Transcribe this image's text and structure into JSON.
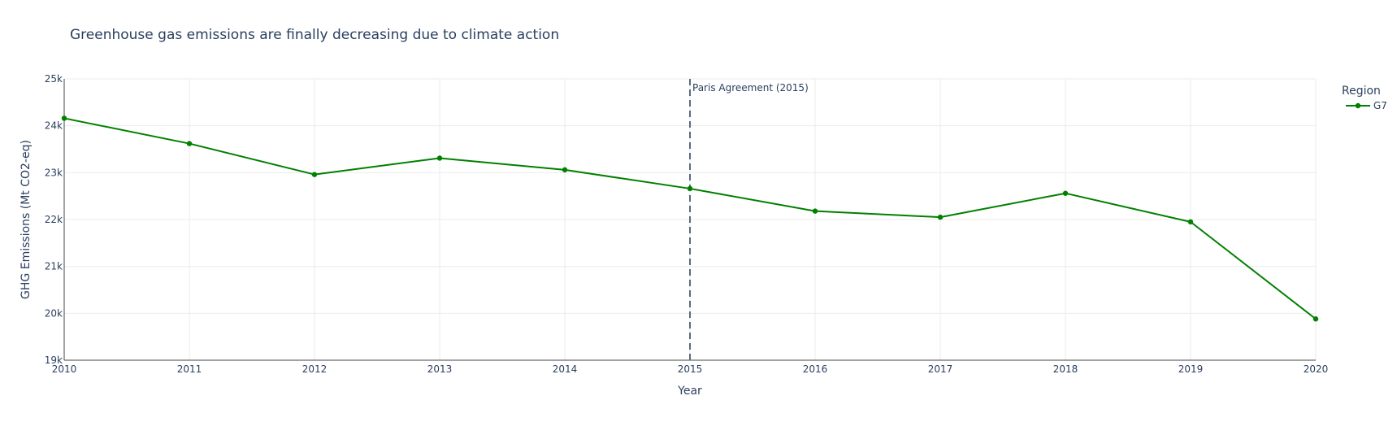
{
  "chart_data": {
    "type": "line",
    "title": "Greenhouse gas emissions are finally decreasing due to climate action",
    "xlabel": "Year",
    "ylabel": "GHG Emissions (Mt CO2-eq)",
    "x": [
      2010,
      2011,
      2012,
      2013,
      2014,
      2015,
      2016,
      2017,
      2018,
      2019,
      2020
    ],
    "xlim": [
      2010,
      2020
    ],
    "ylim": [
      19000,
      25000
    ],
    "x_ticks": [
      "2010",
      "2011",
      "2012",
      "2013",
      "2014",
      "2015",
      "2016",
      "2017",
      "2018",
      "2019",
      "2020"
    ],
    "y_ticks": [
      {
        "value": 19000,
        "label": "19k"
      },
      {
        "value": 20000,
        "label": "20k"
      },
      {
        "value": 21000,
        "label": "21k"
      },
      {
        "value": 22000,
        "label": "22k"
      },
      {
        "value": 23000,
        "label": "23k"
      },
      {
        "value": 24000,
        "label": "24k"
      },
      {
        "value": 25000,
        "label": "25k"
      }
    ],
    "grid": true,
    "legend": {
      "title": "Region",
      "placement": "top-right"
    },
    "series": [
      {
        "name": "G7",
        "color": "#008000",
        "values": [
          24160,
          23620,
          22960,
          23310,
          23060,
          22660,
          22180,
          22050,
          22560,
          21950,
          19880
        ]
      }
    ],
    "annotations": [
      {
        "type": "vline",
        "x": 2015,
        "label": "Paris Agreement (2015)",
        "color": "#5a6b80"
      }
    ]
  }
}
